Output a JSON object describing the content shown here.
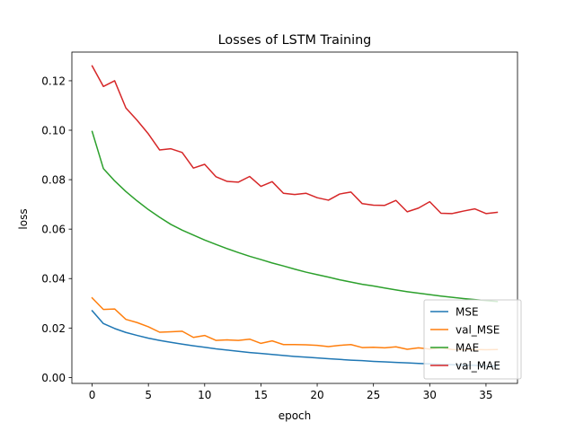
{
  "chart_data": {
    "type": "line",
    "title": "Losses of LSTM Training",
    "xlabel": "epoch",
    "ylabel": "loss",
    "xlim": [
      -1.8,
      37.8
    ],
    "ylim": [
      -0.0024,
      0.1316
    ],
    "xticks": [
      0,
      5,
      10,
      15,
      20,
      25,
      30,
      35
    ],
    "yticks": [
      0.0,
      0.02,
      0.04,
      0.06,
      0.08,
      0.1,
      0.12
    ],
    "ytick_labels": [
      "0.00",
      "0.02",
      "0.04",
      "0.06",
      "0.08",
      "0.10",
      "0.12"
    ],
    "grid": false,
    "legend_position": "lower right",
    "x": [
      0,
      1,
      2,
      3,
      4,
      5,
      6,
      7,
      8,
      9,
      10,
      11,
      12,
      13,
      14,
      15,
      16,
      17,
      18,
      19,
      20,
      21,
      22,
      23,
      24,
      25,
      26,
      27,
      28,
      29,
      30,
      31,
      32,
      33,
      34,
      35,
      36
    ],
    "series": [
      {
        "name": "MSE",
        "color": "#1f77b4",
        "values": [
          0.027,
          0.0218,
          0.0198,
          0.0182,
          0.017,
          0.0159,
          0.015,
          0.0142,
          0.0135,
          0.0128,
          0.0122,
          0.0116,
          0.0111,
          0.0106,
          0.0101,
          0.0097,
          0.0093,
          0.0089,
          0.0085,
          0.0082,
          0.0079,
          0.0076,
          0.0073,
          0.007,
          0.0068,
          0.0065,
          0.0063,
          0.0061,
          0.0059,
          0.0057,
          0.0055,
          0.0053,
          0.0052,
          0.005,
          0.0049,
          0.0047,
          0.0046
        ]
      },
      {
        "name": "val_MSE",
        "color": "#ff7f0e",
        "values": [
          0.0322,
          0.0275,
          0.0277,
          0.0235,
          0.0222,
          0.0205,
          0.0183,
          0.0185,
          0.0187,
          0.0162,
          0.017,
          0.015,
          0.0152,
          0.015,
          0.0155,
          0.0138,
          0.0148,
          0.0133,
          0.0133,
          0.0132,
          0.013,
          0.0125,
          0.013,
          0.0133,
          0.0121,
          0.0122,
          0.012,
          0.0124,
          0.0114,
          0.012,
          0.0115,
          0.012,
          0.0113,
          0.0112,
          0.0113,
          0.0112,
          0.0113
        ]
      },
      {
        "name": "MAE",
        "color": "#2ca02c",
        "values": [
          0.0995,
          0.0845,
          0.0795,
          0.0752,
          0.0714,
          0.0679,
          0.0648,
          0.0619,
          0.0596,
          0.0576,
          0.0556,
          0.0538,
          0.0521,
          0.0505,
          0.049,
          0.0477,
          0.0463,
          0.0451,
          0.0438,
          0.0426,
          0.0416,
          0.0406,
          0.0395,
          0.0386,
          0.0377,
          0.037,
          0.0362,
          0.0354,
          0.0347,
          0.0341,
          0.0335,
          0.0329,
          0.0324,
          0.0319,
          0.0315,
          0.0311,
          0.0307
        ]
      },
      {
        "name": "val_MAE",
        "color": "#d62728",
        "values": [
          0.126,
          0.1177,
          0.12,
          0.109,
          0.104,
          0.0985,
          0.092,
          0.0925,
          0.091,
          0.0847,
          0.0862,
          0.0812,
          0.0793,
          0.079,
          0.0813,
          0.0773,
          0.0792,
          0.0745,
          0.074,
          0.0745,
          0.0727,
          0.0717,
          0.0742,
          0.075,
          0.0703,
          0.0697,
          0.0696,
          0.0716,
          0.067,
          0.0685,
          0.0711,
          0.0664,
          0.0663,
          0.0673,
          0.0682,
          0.0663,
          0.0668
        ]
      }
    ]
  }
}
